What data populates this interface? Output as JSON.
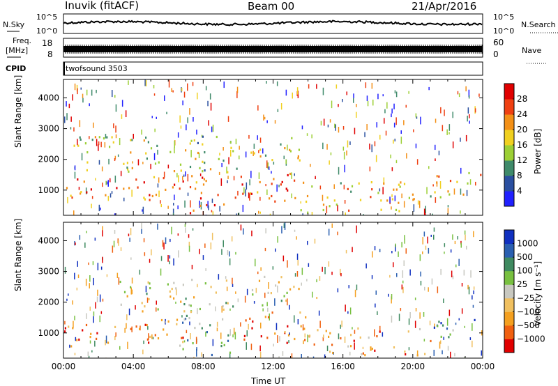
{
  "header": {
    "station": "Inuvik (fitACF)",
    "beam": "Beam 00",
    "date": "21/Apr/2016"
  },
  "top_panels": {
    "nsky_label": "N.Sky",
    "nsearch_label": "N.Search",
    "nsky_ticks": [
      "10^5",
      "10^0"
    ],
    "nsearch_ticks": [
      "10^5",
      "10^0"
    ],
    "freq_label_1": "Freq.",
    "freq_label_2": "[MHz]",
    "freq_ticks": [
      "18",
      "8"
    ],
    "nave_label": "Nave",
    "nave_ticks": [
      "60",
      "0"
    ],
    "cpid_label": "CPID",
    "cpid_value": "twofsound 3503"
  },
  "chart_data": [
    {
      "type": "heatmap",
      "panel": "power",
      "ylabel": "Slant Range [km]",
      "ylim": [
        180,
        4600
      ],
      "yticks": [
        "4000",
        "3000",
        "2000",
        "1000"
      ],
      "colorbar_label": "Power [dB]",
      "colorbar_ticks": [
        "28",
        "24",
        "20",
        "16",
        "12",
        "8",
        "4"
      ],
      "colors": [
        "#2020ff",
        "#2a4fa0",
        "#3f8a6a",
        "#9ccf35",
        "#f0d020",
        "#f39017",
        "#ef4012",
        "#e00000"
      ],
      "regions": [
        {
          "t0": 0.0,
          "t1": 9.0,
          "r0": 700,
          "r1": 1500,
          "level": 0.75
        },
        {
          "t0": 7.0,
          "t1": 9.4,
          "r0": 250,
          "r1": 700,
          "level": 0.9
        },
        {
          "t0": 9.8,
          "t1": 13.6,
          "r0": 650,
          "r1": 1700,
          "level": 0.8
        },
        {
          "t0": 13.5,
          "t1": 21.0,
          "r0": 300,
          "r1": 1300,
          "level": 0.55
        },
        {
          "t0": 21.0,
          "t1": 24.0,
          "r0": 800,
          "r1": 1600,
          "level": 0.6
        },
        {
          "t0": 0.5,
          "t1": 10.0,
          "r0": 1600,
          "r1": 2800,
          "level": 0.45
        },
        {
          "t0": 10.5,
          "t1": 13.5,
          "r0": 1900,
          "r1": 2800,
          "level": 0.5
        }
      ]
    },
    {
      "type": "heatmap",
      "panel": "velocity",
      "ylabel": "Slant Range [km]",
      "xlabel": "Time UT",
      "ylim": [
        180,
        4600
      ],
      "yticks": [
        "4000",
        "3000",
        "2000",
        "1000"
      ],
      "xticks": [
        "00:00",
        "04:00",
        "08:00",
        "12:00",
        "16:00",
        "20:00",
        "00:00"
      ],
      "colorbar_label": "Velocity [m s⁻¹]",
      "colorbar_ticks": [
        "1000",
        "500",
        "100",
        "25",
        "−25",
        "−100",
        "−500",
        "−1000"
      ],
      "colors": [
        "#e00000",
        "#f06010",
        "#f4a020",
        "#f0c060",
        "#c8c8c0",
        "#78c040",
        "#3f8a60",
        "#2a5fb0",
        "#1030c0"
      ],
      "regions": [
        {
          "t0": 0.0,
          "t1": 7.0,
          "r0": 600,
          "r1": 1500,
          "level": 0.25
        },
        {
          "t0": 6.5,
          "t1": 9.5,
          "r0": 300,
          "r1": 1600,
          "level": 0.7
        },
        {
          "t0": 9.8,
          "t1": 14.0,
          "r0": 700,
          "r1": 1700,
          "level": 0.2
        },
        {
          "t0": 14.0,
          "t1": 21.0,
          "r0": 300,
          "r1": 1200,
          "level": 0.25
        },
        {
          "t0": 21.0,
          "t1": 24.0,
          "r0": 900,
          "r1": 1600,
          "level": 0.75
        },
        {
          "t0": 3.0,
          "t1": 10.0,
          "r0": 1700,
          "r1": 2800,
          "level": 0.5
        },
        {
          "t0": 10.5,
          "t1": 13.5,
          "r0": 1900,
          "r1": 2900,
          "level": 0.5
        }
      ]
    }
  ]
}
